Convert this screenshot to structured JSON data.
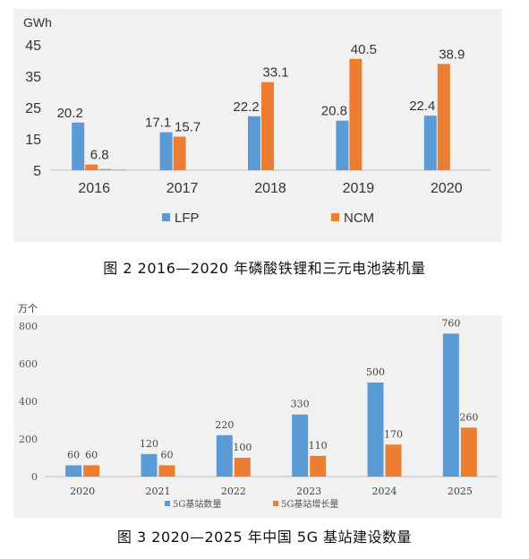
{
  "chart_data": [
    {
      "type": "bar",
      "unit_label": "GWh",
      "categories": [
        "2016",
        "2017",
        "2018",
        "2019",
        "2020"
      ],
      "series": [
        {
          "name": "LFP",
          "color": "#5b9bd5",
          "values": [
            20.2,
            17.1,
            22.2,
            20.8,
            22.4
          ]
        },
        {
          "name": "NCM",
          "color": "#ed7d31",
          "values": [
            6.8,
            15.7,
            33.1,
            40.5,
            38.9
          ]
        },
        {
          "name": "",
          "color": "#a5a5a5",
          "values": [
            5.4,
            null,
            null,
            null,
            null
          ]
        },
        {
          "name": "",
          "color": "#ffc000",
          "values": [
            5.3,
            null,
            null,
            null,
            null
          ]
        }
      ],
      "data_labels": {
        "LFP": [
          "20.2",
          "17.1",
          "22.2",
          "20.8",
          "22.4"
        ],
        "NCM": [
          "6.8",
          "15.7",
          "33.1",
          "40.5",
          "38.9"
        ]
      },
      "y_ticks": [
        "5",
        "15",
        "25",
        "35",
        "45"
      ],
      "ylim": [
        5,
        45
      ],
      "grid": false,
      "legend_placement": "bottom",
      "caption": "图 2  2016—2020 年磷酸铁锂和三元电池装机量"
    },
    {
      "type": "bar",
      "unit_label": "万个",
      "categories": [
        "2020",
        "2021",
        "2022",
        "2023",
        "2024",
        "2025"
      ],
      "series": [
        {
          "name": "5G基站数量",
          "color": "#5b9bd5",
          "values": [
            60,
            120,
            220,
            330,
            500,
            760
          ]
        },
        {
          "name": "5G基站增长量",
          "color": "#ed7d31",
          "values": [
            60,
            60,
            100,
            110,
            170,
            260
          ]
        }
      ],
      "data_labels": {
        "5G基站数量": [
          "60",
          "120",
          "220",
          "330",
          "500",
          "760"
        ],
        "5G基站增长量": [
          "60",
          "60",
          "100",
          "110",
          "170",
          "260"
        ]
      },
      "y_ticks": [
        "0",
        "200",
        "400",
        "600",
        "800"
      ],
      "ylim": [
        0,
        800
      ],
      "grid": false,
      "legend_placement": "bottom",
      "caption": "图 3  2020—2025 年中国 5G 基站建设数量"
    }
  ]
}
